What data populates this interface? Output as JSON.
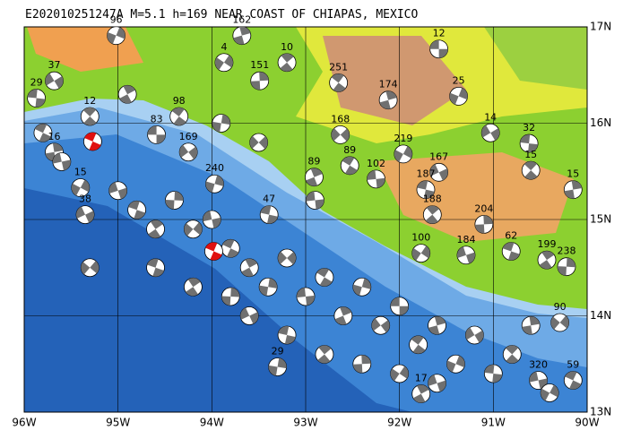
{
  "header": {
    "title": "E202010251247A M=5.1 h=169 NEAR COAST OF CHIAPAS, MEXICO"
  },
  "map": {
    "xlim": [
      -96,
      -90
    ],
    "ylim": [
      13,
      17
    ],
    "xticks": [
      {
        "value": -96,
        "label": "96W"
      },
      {
        "value": -95,
        "label": "95W"
      },
      {
        "value": -94,
        "label": "94W"
      },
      {
        "value": -93,
        "label": "93W"
      },
      {
        "value": -92,
        "label": "92W"
      },
      {
        "value": -91,
        "label": "91W"
      },
      {
        "value": -90,
        "label": "90W"
      }
    ],
    "yticks": [
      {
        "value": 13,
        "label": "13N"
      },
      {
        "value": 14,
        "label": "14N"
      },
      {
        "value": 15,
        "label": "15N"
      },
      {
        "value": 16,
        "label": "16N"
      },
      {
        "value": 17,
        "label": "17N"
      }
    ],
    "main_events": [
      {
        "lon": -93.98,
        "lat": 14.67
      },
      {
        "lon": -95.27,
        "lat": 15.81
      }
    ],
    "events": [
      {
        "lon": -91.58,
        "lat": 16.77,
        "depth": 12
      },
      {
        "lon": -92.65,
        "lat": 16.42,
        "depth": 251
      },
      {
        "lon": -92.12,
        "lat": 16.24,
        "depth": 174
      },
      {
        "lon": -91.37,
        "lat": 16.28,
        "depth": 25
      },
      {
        "lon": -91.03,
        "lat": 15.9,
        "depth": 14
      },
      {
        "lon": -90.62,
        "lat": 15.79,
        "depth": 32
      },
      {
        "lon": -90.6,
        "lat": 15.51,
        "depth": 15
      },
      {
        "lon": -90.15,
        "lat": 15.31,
        "depth": 15
      },
      {
        "lon": -91.96,
        "lat": 15.68,
        "depth": 219
      },
      {
        "lon": -91.58,
        "lat": 15.49,
        "depth": 167
      },
      {
        "lon": -91.72,
        "lat": 15.31,
        "depth": 187
      },
      {
        "lon": -91.65,
        "lat": 15.05,
        "depth": 188
      },
      {
        "lon": -91.1,
        "lat": 14.95,
        "depth": 204
      },
      {
        "lon": -91.77,
        "lat": 14.65,
        "depth": 100
      },
      {
        "lon": -91.29,
        "lat": 14.63,
        "depth": 184
      },
      {
        "lon": -90.81,
        "lat": 14.67,
        "depth": 62
      },
      {
        "lon": -90.43,
        "lat": 14.58,
        "depth": 199
      },
      {
        "lon": -90.22,
        "lat": 14.51,
        "depth": 238
      },
      {
        "lon": -90.29,
        "lat": 13.93,
        "depth": 90
      },
      {
        "lon": -90.52,
        "lat": 13.33,
        "depth": 320
      },
      {
        "lon": -90.15,
        "lat": 13.33,
        "depth": 59
      },
      {
        "lon": -91.77,
        "lat": 13.19,
        "depth": 17
      },
      {
        "lon": -93.3,
        "lat": 13.47,
        "depth": 29
      },
      {
        "lon": -92.63,
        "lat": 15.88,
        "depth": 168
      },
      {
        "lon": -92.25,
        "lat": 15.42,
        "depth": 102
      },
      {
        "lon": -92.53,
        "lat": 15.56,
        "depth": 89
      },
      {
        "lon": -92.91,
        "lat": 15.44,
        "depth": 89
      },
      {
        "lon": -93.97,
        "lat": 15.37,
        "depth": 240
      },
      {
        "lon": -94.25,
        "lat": 15.7,
        "depth": 169
      },
      {
        "lon": -94.59,
        "lat": 15.88,
        "depth": 83
      },
      {
        "lon": -94.35,
        "lat": 16.07,
        "depth": 98
      },
      {
        "lon": -93.68,
        "lat": 16.91,
        "depth": 162
      },
      {
        "lon": -95.02,
        "lat": 16.91,
        "depth": 96
      },
      {
        "lon": -95.68,
        "lat": 16.44,
        "depth": 37
      },
      {
        "lon": -95.87,
        "lat": 16.26,
        "depth": 29
      },
      {
        "lon": -95.3,
        "lat": 16.07,
        "depth": 12
      },
      {
        "lon": -95.68,
        "lat": 15.7,
        "depth": 16
      },
      {
        "lon": -95.4,
        "lat": 15.33,
        "depth": 15
      },
      {
        "lon": -95.35,
        "lat": 15.05,
        "depth": 38
      },
      {
        "lon": -93.39,
        "lat": 15.05,
        "depth": 47
      },
      {
        "lon": -93.2,
        "lat": 16.63,
        "depth": 10
      },
      {
        "lon": -93.49,
        "lat": 16.44,
        "depth": 151
      },
      {
        "lon": -93.87,
        "lat": 16.63,
        "depth": 4
      },
      {
        "lon": -95.0,
        "lat": 15.3
      },
      {
        "lon": -94.8,
        "lat": 15.1
      },
      {
        "lon": -94.6,
        "lat": 14.9
      },
      {
        "lon": -94.4,
        "lat": 15.2
      },
      {
        "lon": -94.2,
        "lat": 14.9
      },
      {
        "lon": -94.0,
        "lat": 15.0
      },
      {
        "lon": -93.8,
        "lat": 14.7
      },
      {
        "lon": -93.6,
        "lat": 14.5
      },
      {
        "lon": -93.4,
        "lat": 14.3
      },
      {
        "lon": -93.2,
        "lat": 14.6
      },
      {
        "lon": -93.0,
        "lat": 14.2
      },
      {
        "lon": -92.8,
        "lat": 14.4
      },
      {
        "lon": -92.6,
        "lat": 14.0
      },
      {
        "lon": -92.4,
        "lat": 14.3
      },
      {
        "lon": -92.2,
        "lat": 13.9
      },
      {
        "lon": -92.0,
        "lat": 14.1
      },
      {
        "lon": -91.8,
        "lat": 13.7
      },
      {
        "lon": -91.6,
        "lat": 13.9
      },
      {
        "lon": -91.4,
        "lat": 13.5
      },
      {
        "lon": -91.2,
        "lat": 13.8
      },
      {
        "lon": -91.0,
        "lat": 13.4
      },
      {
        "lon": -90.8,
        "lat": 13.6
      },
      {
        "lon": -90.6,
        "lat": 13.9
      },
      {
        "lon": -90.4,
        "lat": 13.2
      },
      {
        "lon": -93.6,
        "lat": 14.0
      },
      {
        "lon": -93.2,
        "lat": 13.8
      },
      {
        "lon": -92.8,
        "lat": 13.6
      },
      {
        "lon": -92.4,
        "lat": 13.5
      },
      {
        "lon": -92.0,
        "lat": 13.4
      },
      {
        "lon": -91.6,
        "lat": 13.3
      },
      {
        "lon": -94.6,
        "lat": 14.5
      },
      {
        "lon": -94.2,
        "lat": 14.3
      },
      {
        "lon": -93.8,
        "lat": 14.2
      },
      {
        "lon": -95.3,
        "lat": 14.5
      },
      {
        "lon": -95.6,
        "lat": 15.6
      },
      {
        "lon": -95.8,
        "lat": 15.9
      },
      {
        "lon": -94.9,
        "lat": 16.3
      },
      {
        "lon": -93.9,
        "lat": 16.0
      },
      {
        "lon": -93.5,
        "lat": 15.8
      },
      {
        "lon": -92.9,
        "lat": 15.2
      }
    ]
  }
}
